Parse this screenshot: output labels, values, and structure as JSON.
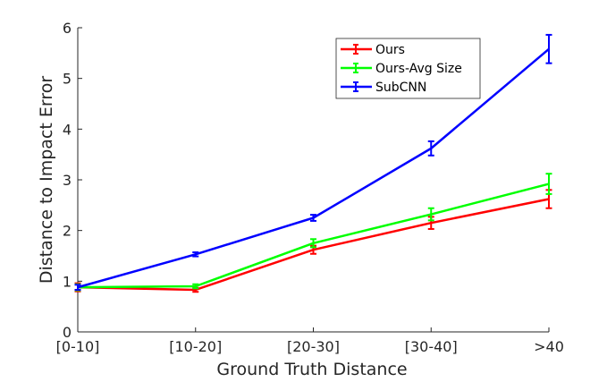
{
  "chart_data": {
    "type": "line",
    "title": "",
    "xlabel": "Ground Truth Distance",
    "ylabel": "Distance to Impact Error",
    "categories": [
      "[0-10]",
      "[10-20]",
      "[20-30]",
      "[30-40]",
      ">40"
    ],
    "ylim": [
      0,
      6
    ],
    "yticks": [
      0,
      1,
      2,
      3,
      4,
      5,
      6
    ],
    "grid": false,
    "legend_position": "top-right",
    "series": [
      {
        "name": "Ours",
        "color": "#ff0000",
        "values": [
          0.88,
          0.83,
          1.62,
          2.15,
          2.62
        ],
        "errors": [
          0.08,
          0.04,
          0.08,
          0.12,
          0.18
        ]
      },
      {
        "name": "Ours-Avg Size",
        "color": "#00ff00",
        "values": [
          0.88,
          0.9,
          1.75,
          2.32,
          2.92
        ],
        "errors": [
          0.06,
          0.04,
          0.08,
          0.12,
          0.2
        ]
      },
      {
        "name": "SubCNN",
        "color": "#0000ff",
        "values": [
          0.88,
          1.53,
          2.25,
          3.62,
          5.58
        ],
        "errors": [
          0.05,
          0.04,
          0.06,
          0.14,
          0.28
        ]
      }
    ]
  }
}
